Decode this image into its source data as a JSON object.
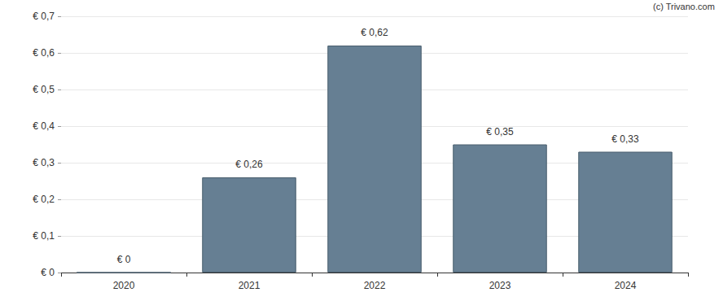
{
  "chart_data": {
    "type": "bar",
    "categories": [
      "2020",
      "2021",
      "2022",
      "2023",
      "2024"
    ],
    "values": [
      0,
      0.26,
      0.62,
      0.35,
      0.33
    ],
    "value_labels": [
      "€ 0",
      "€ 0,26",
      "€ 0,62",
      "€ 0,35",
      "€ 0,33"
    ],
    "data_labels": true,
    "color": "#667f93",
    "ylim": [
      0,
      0.7
    ],
    "yticks": [
      {
        "value": 0,
        "label": "€ 0"
      },
      {
        "value": 0.1,
        "label": "€ 0,1"
      },
      {
        "value": 0.2,
        "label": "€ 0,2"
      },
      {
        "value": 0.3,
        "label": "€ 0,3"
      },
      {
        "value": 0.4,
        "label": "€ 0,4"
      },
      {
        "value": 0.5,
        "label": "€ 0,5"
      },
      {
        "value": 0.6,
        "label": "€ 0,6"
      },
      {
        "value": 0.7,
        "label": "€ 0,7"
      }
    ],
    "grid": true,
    "annotations": [
      "(c) Trivano.com"
    ]
  }
}
